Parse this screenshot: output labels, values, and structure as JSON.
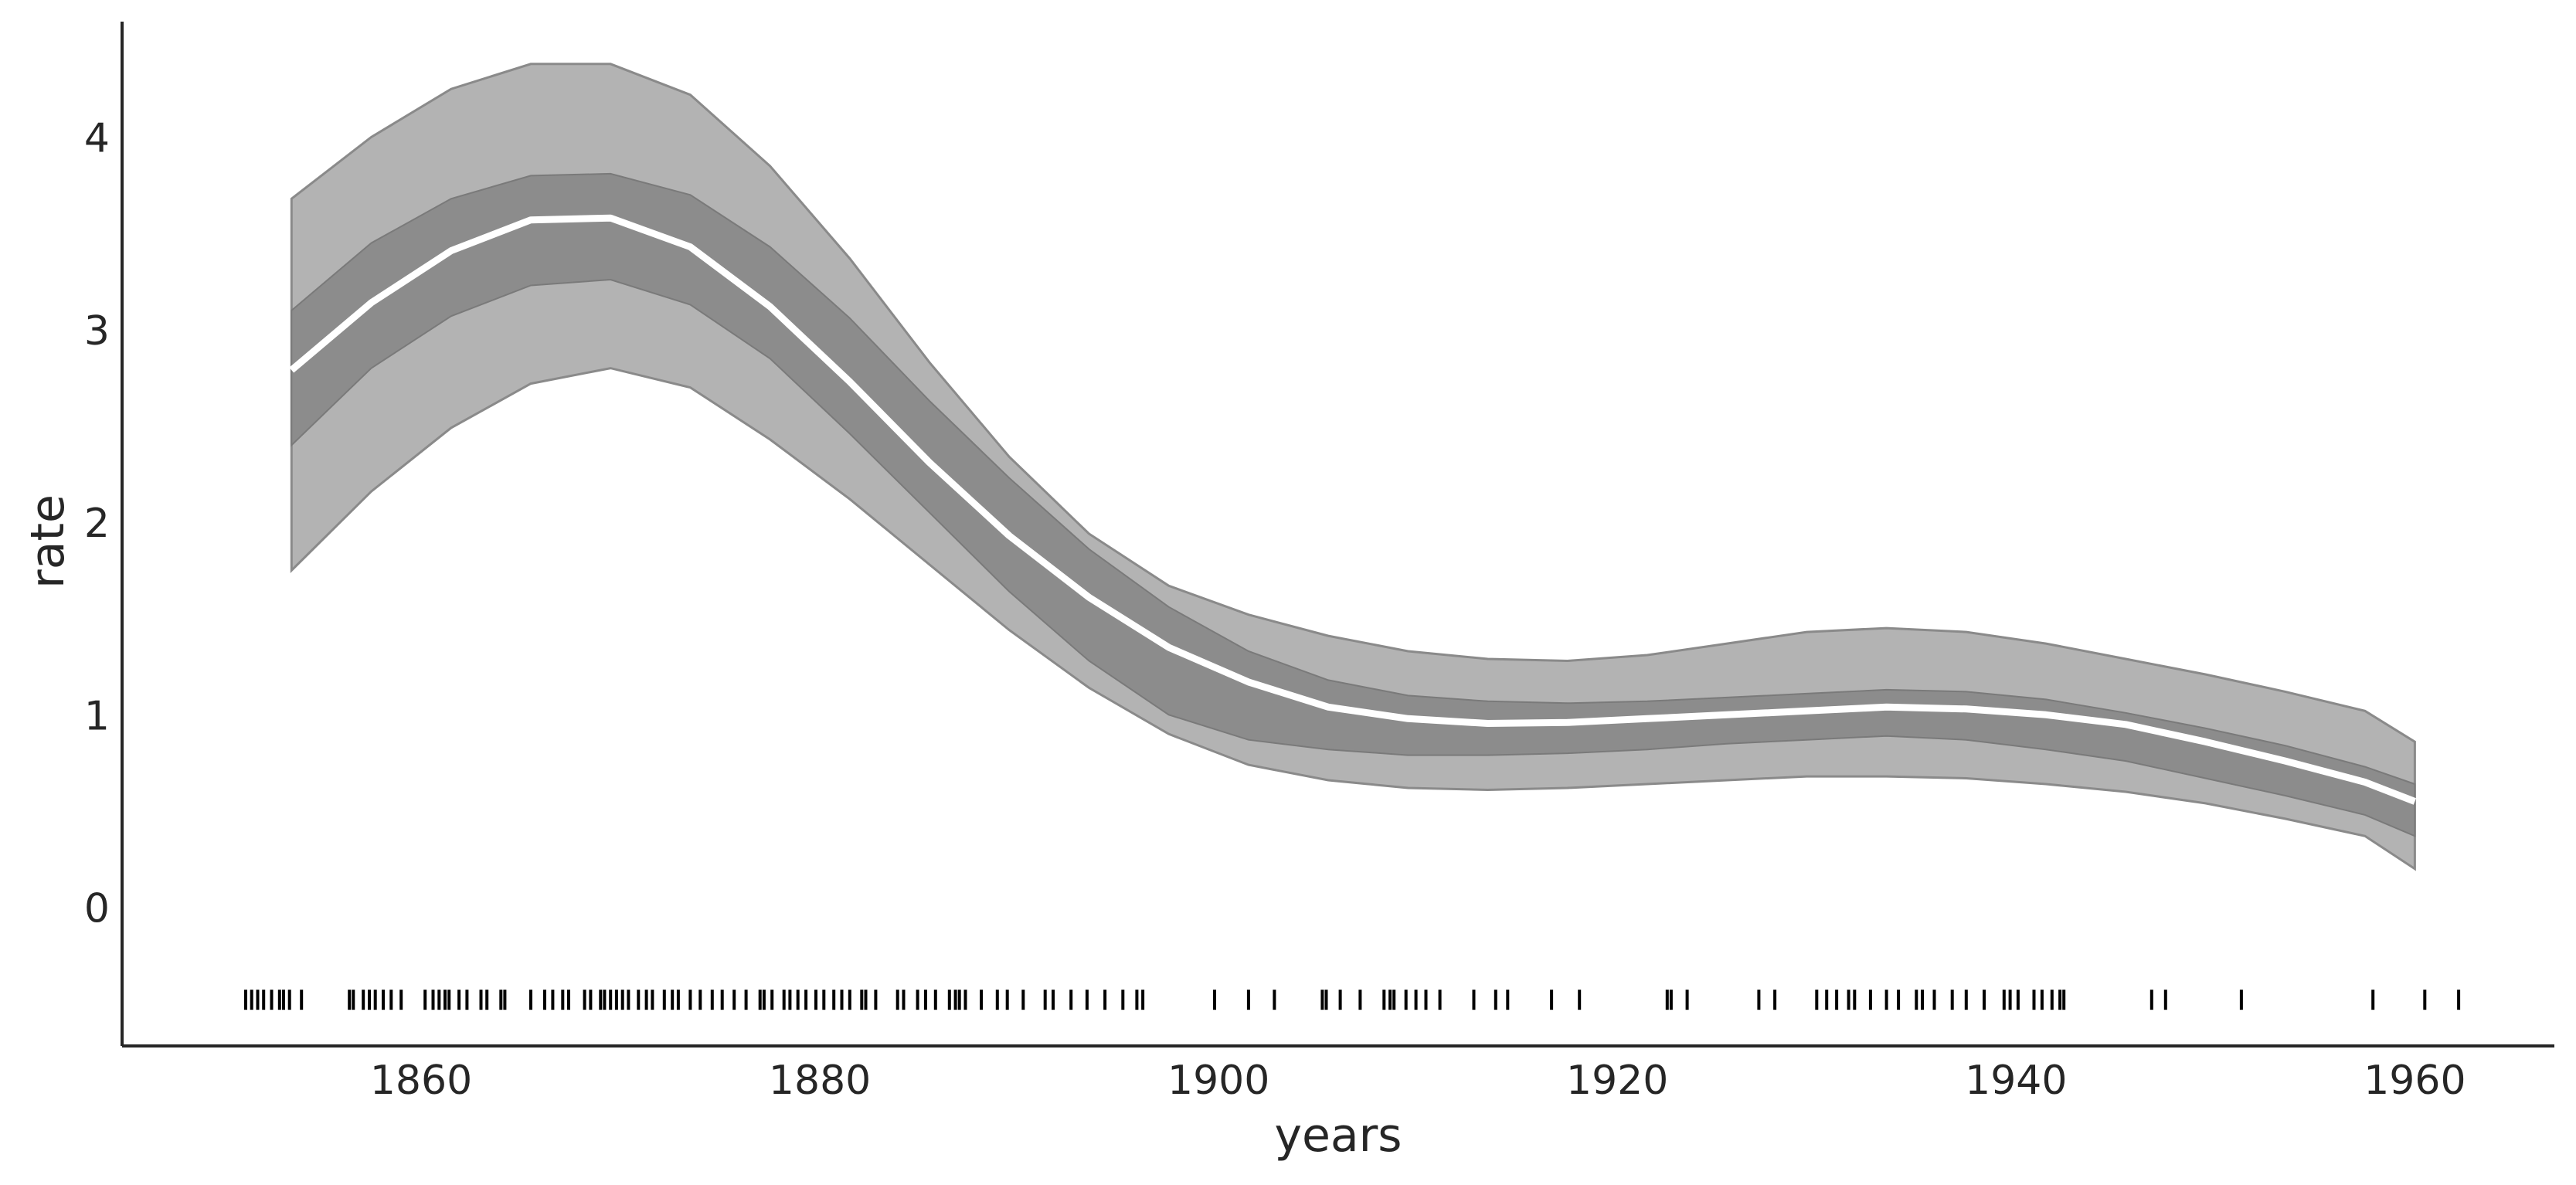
{
  "chart_data": {
    "type": "area",
    "title": "",
    "xlabel": "years",
    "ylabel": "rate",
    "xlim": [
      1845,
      1967
    ],
    "ylim": [
      -0.72,
      4.6
    ],
    "x_ticks": [
      "1860",
      "1880",
      "1900",
      "1920",
      "1940",
      "1960"
    ],
    "y_ticks": [
      "0",
      "1",
      "2",
      "3",
      "4"
    ],
    "grid": false,
    "legend": "none",
    "colors": {
      "outer_band": "#b3b3b3",
      "inner_band": "#8c8c8c",
      "mean_line": "#ffffff",
      "rug": "#000000",
      "axis": "#262626"
    },
    "x": [
      1853.5,
      1857.5,
      1861.5,
      1865.5,
      1869.5,
      1873.5,
      1877.5,
      1881.5,
      1885.5,
      1889.5,
      1893.5,
      1897.5,
      1901.5,
      1905.5,
      1909.5,
      1913.5,
      1917.5,
      1921.5,
      1925.5,
      1929.5,
      1933.5,
      1937.5,
      1941.5,
      1945.5,
      1949.5,
      1953.5,
      1957.5,
      1960
    ],
    "series": [
      {
        "role": "mean",
        "values": [
          2.79,
          3.14,
          3.41,
          3.57,
          3.58,
          3.43,
          3.12,
          2.73,
          2.31,
          1.93,
          1.61,
          1.35,
          1.17,
          1.04,
          0.98,
          0.955,
          0.96,
          0.98,
          1.0,
          1.02,
          1.04,
          1.03,
          1.0,
          0.95,
          0.86,
          0.76,
          0.65,
          0.55
        ]
      },
      {
        "role": "inner_band_upper",
        "values": [
          3.1,
          3.45,
          3.68,
          3.8,
          3.81,
          3.7,
          3.43,
          3.06,
          2.63,
          2.23,
          1.86,
          1.56,
          1.33,
          1.18,
          1.1,
          1.07,
          1.06,
          1.07,
          1.09,
          1.11,
          1.13,
          1.12,
          1.08,
          1.01,
          0.93,
          0.84,
          0.73,
          0.64
        ]
      },
      {
        "role": "inner_band_lower",
        "values": [
          2.4,
          2.8,
          3.07,
          3.23,
          3.26,
          3.13,
          2.85,
          2.46,
          2.05,
          1.64,
          1.28,
          1.0,
          0.87,
          0.82,
          0.79,
          0.79,
          0.8,
          0.82,
          0.85,
          0.87,
          0.89,
          0.87,
          0.82,
          0.76,
          0.67,
          0.58,
          0.48,
          0.37
        ]
      },
      {
        "role": "outer_band_upper",
        "values": [
          3.68,
          4.0,
          4.25,
          4.38,
          4.38,
          4.22,
          3.85,
          3.37,
          2.83,
          2.34,
          1.94,
          1.67,
          1.52,
          1.41,
          1.33,
          1.29,
          1.28,
          1.31,
          1.37,
          1.43,
          1.45,
          1.43,
          1.37,
          1.29,
          1.21,
          1.12,
          1.02,
          0.86
        ]
      },
      {
        "role": "outer_band_lower",
        "values": [
          1.75,
          2.16,
          2.49,
          2.72,
          2.8,
          2.7,
          2.43,
          2.12,
          1.78,
          1.44,
          1.14,
          0.9,
          0.74,
          0.66,
          0.62,
          0.61,
          0.62,
          0.64,
          0.66,
          0.68,
          0.68,
          0.67,
          0.64,
          0.6,
          0.54,
          0.46,
          0.37,
          0.2
        ]
      }
    ],
    "rug_y": -0.48,
    "rug_x": [
      1851.2,
      1851.5,
      1851.8,
      1852.1,
      1852.5,
      1852.9,
      1853.1,
      1853.4,
      1854.0,
      1856.4,
      1856.6,
      1857.1,
      1857.4,
      1857.7,
      1858.1,
      1858.5,
      1859.0,
      1860.2,
      1860.6,
      1860.9,
      1861.2,
      1861.4,
      1861.9,
      1862.3,
      1863.0,
      1863.3,
      1864.0,
      1864.2,
      1865.5,
      1866.2,
      1866.6,
      1867.1,
      1867.4,
      1868.2,
      1868.5,
      1869.0,
      1869.2,
      1869.5,
      1869.8,
      1870.1,
      1870.4,
      1870.9,
      1871.3,
      1871.6,
      1872.2,
      1872.6,
      1872.9,
      1873.5,
      1874.0,
      1874.6,
      1875.1,
      1875.7,
      1876.3,
      1877.0,
      1877.2,
      1877.6,
      1878.2,
      1878.5,
      1878.9,
      1879.3,
      1879.8,
      1880.2,
      1880.7,
      1881.1,
      1881.5,
      1882.1,
      1882.3,
      1882.8,
      1883.9,
      1884.2,
      1884.9,
      1885.3,
      1885.8,
      1886.5,
      1886.8,
      1887.0,
      1887.3,
      1888.1,
      1888.9,
      1889.4,
      1890.2,
      1891.3,
      1891.7,
      1892.6,
      1893.4,
      1894.3,
      1895.2,
      1895.9,
      1896.2,
      1899.8,
      1901.5,
      1902.8,
      1905.2,
      1905.4,
      1906.1,
      1907.1,
      1908.3,
      1908.6,
      1908.8,
      1909.4,
      1909.9,
      1910.4,
      1911.1,
      1912.8,
      1913.9,
      1914.5,
      1916.7,
      1918.1,
      1922.5,
      1922.7,
      1923.5,
      1927.1,
      1927.9,
      1930.0,
      1930.5,
      1931.0,
      1931.6,
      1931.9,
      1932.7,
      1933.5,
      1934.1,
      1935.0,
      1935.3,
      1935.9,
      1936.8,
      1937.5,
      1938.4,
      1939.4,
      1939.7,
      1940.1,
      1940.9,
      1941.3,
      1941.8,
      1942.2,
      1942.4,
      1946.8,
      1947.5,
      1951.3,
      1957.9,
      1960.5,
      1962.2
    ]
  }
}
